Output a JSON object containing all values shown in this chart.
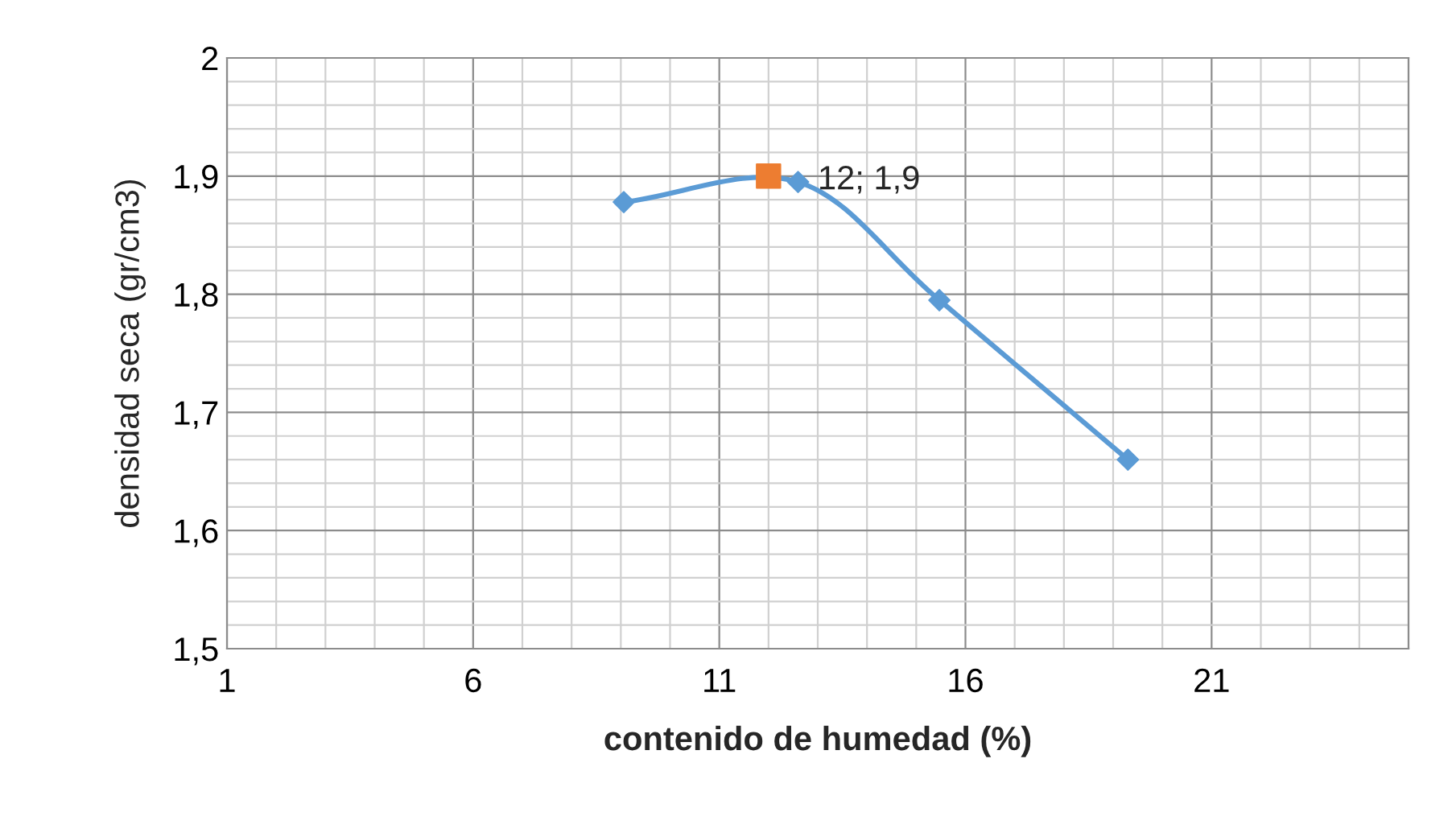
{
  "chart_data": {
    "type": "line",
    "xlabel": "contenido de humedad (%)",
    "ylabel": "densidad seca (gr/cm3)",
    "series": [
      {
        "color": "#5b9bd5",
        "marker": "diamond",
        "x": [
          9.06,
          12.6,
          15.47,
          19.3
        ],
        "values": [
          1.878,
          1.895,
          1.795,
          1.66
        ]
      },
      {
        "type": "scatter",
        "color": "#ed7d31",
        "marker": "square",
        "x": [
          12
        ],
        "values": [
          1.9
        ],
        "value_labels": [
          "12; 1,9"
        ]
      }
    ],
    "xlim": [
      1,
      25
    ],
    "xticks": [
      1,
      6,
      11,
      16,
      21
    ],
    "ylim": [
      1.5,
      2
    ],
    "yticks": [
      {
        "value": 1.5,
        "label": "1,5"
      },
      {
        "value": 1.6,
        "label": "1,6"
      },
      {
        "value": 1.7,
        "label": "1,7"
      },
      {
        "value": 1.8,
        "label": "1,8"
      },
      {
        "value": 1.9,
        "label": "1,9"
      },
      2
    ],
    "grid": true,
    "legend": false
  }
}
